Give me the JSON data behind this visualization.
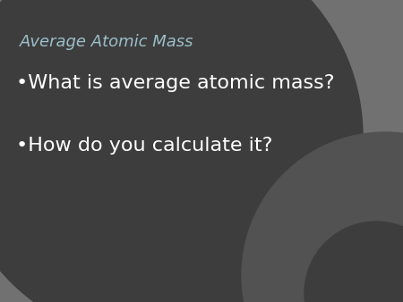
{
  "title": "Average Atomic Mass",
  "bullet1": "•What is average atomic mass?",
  "bullet2": "•How do you calculate it?",
  "bg_color": "#606060",
  "bg_dark_color": "#3d3d3d",
  "bg_mid_color": "#525252",
  "bg_light_color": "#717171",
  "title_color": "#9bbfc9",
  "bullet_color": "#ffffff",
  "title_fontsize": 13,
  "bullet_fontsize": 16,
  "fig_width": 4.5,
  "fig_height": 3.38,
  "dpi": 100
}
